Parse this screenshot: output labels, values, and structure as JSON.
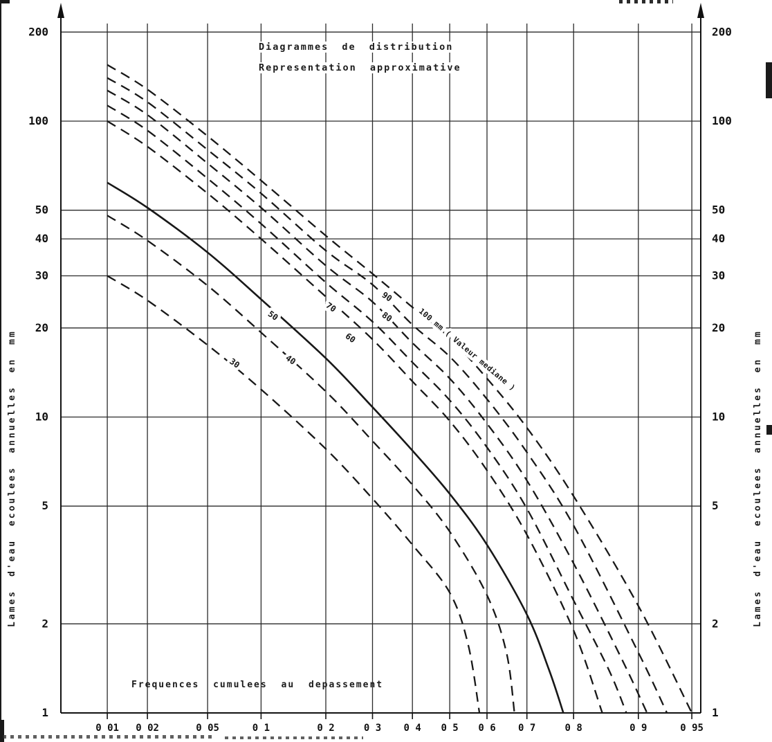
{
  "chart_data": {
    "type": "line",
    "title": "Diagrammes de distribution",
    "subtitle": "Representation approximative",
    "x_axis": {
      "label": "Frequences cumulees au depassement",
      "scale": "normal-probability",
      "ticks": [
        0.01,
        0.02,
        0.05,
        0.1,
        0.2,
        0.3,
        0.4,
        0.5,
        0.6,
        0.7,
        0.8,
        0.9,
        0.95
      ],
      "tick_labels": [
        "0 01",
        "0 02",
        "0 05",
        "0 1",
        "0 2",
        "0 3",
        "0 4",
        "0 5",
        "0 6",
        "0 7",
        "0 8",
        "0 9",
        "0 95"
      ]
    },
    "y_axis": {
      "label_left": "Lames d'eau ecoulees annuelles en mm",
      "label_right": "Lames d'eau ecoulees annuelles en mm",
      "scale": "log",
      "range": [
        1,
        250
      ],
      "ticks": [
        200,
        100,
        50,
        40,
        30,
        20,
        10,
        5,
        2,
        1
      ]
    },
    "grid": "on",
    "series": [
      {
        "name": "median-30",
        "label": "30",
        "style": "dashed",
        "label_at": {
          "p": 0.072,
          "v": 15.2,
          "angle": 35
        },
        "points": [
          [
            0.01,
            30
          ],
          [
            0.02,
            24.8
          ],
          [
            0.05,
            17.5
          ],
          [
            0.1,
            12.4
          ],
          [
            0.2,
            7.8
          ],
          [
            0.3,
            5.3
          ],
          [
            0.4,
            3.7
          ],
          [
            0.5,
            2.55
          ],
          [
            0.55,
            1.7
          ],
          [
            0.58,
            1.0
          ]
        ]
      },
      {
        "name": "median-40",
        "label": "40",
        "style": "dashed",
        "label_at": {
          "p": 0.14,
          "v": 15.6,
          "angle": 35
        },
        "points": [
          [
            0.01,
            48
          ],
          [
            0.02,
            39.5
          ],
          [
            0.05,
            27.8
          ],
          [
            0.1,
            19.3
          ],
          [
            0.2,
            12.2
          ],
          [
            0.3,
            8.3
          ],
          [
            0.4,
            5.9
          ],
          [
            0.5,
            4.1
          ],
          [
            0.6,
            2.5
          ],
          [
            0.65,
            1.6
          ],
          [
            0.67,
            1.0
          ]
        ]
      },
      {
        "name": "median-50",
        "label": "50",
        "style": "solid",
        "label_at": {
          "p": 0.115,
          "v": 22,
          "angle": 35
        },
        "points": [
          [
            0.01,
            62
          ],
          [
            0.02,
            51
          ],
          [
            0.05,
            36
          ],
          [
            0.1,
            25
          ],
          [
            0.2,
            15.8
          ],
          [
            0.3,
            10.8
          ],
          [
            0.4,
            7.7
          ],
          [
            0.5,
            5.5
          ],
          [
            0.6,
            3.7
          ],
          [
            0.7,
            2.15
          ],
          [
            0.75,
            1.4
          ],
          [
            0.78,
            1.0
          ]
        ]
      },
      {
        "name": "median-60",
        "label": "60",
        "style": "dashed",
        "label_at": {
          "p": 0.25,
          "v": 18.5,
          "angle": 35
        },
        "points": [
          [
            0.01,
            100
          ],
          [
            0.02,
            82
          ],
          [
            0.05,
            57
          ],
          [
            0.1,
            40
          ],
          [
            0.2,
            25.5
          ],
          [
            0.3,
            18.3
          ],
          [
            0.4,
            13.2
          ],
          [
            0.5,
            9.7
          ],
          [
            0.6,
            6.6
          ],
          [
            0.7,
            4.0
          ],
          [
            0.8,
            1.9
          ],
          [
            0.85,
            1.0
          ]
        ]
      },
      {
        "name": "median-70",
        "label": "70",
        "style": "dashed",
        "label_at": {
          "p": 0.21,
          "v": 23.5,
          "angle": 35
        },
        "points": [
          [
            0.01,
            113
          ],
          [
            0.02,
            93
          ],
          [
            0.05,
            64
          ],
          [
            0.1,
            45
          ],
          [
            0.2,
            28.5
          ],
          [
            0.3,
            21
          ],
          [
            0.4,
            15.3
          ],
          [
            0.5,
            11.4
          ],
          [
            0.6,
            7.9
          ],
          [
            0.7,
            4.9
          ],
          [
            0.8,
            2.4
          ],
          [
            0.86,
            1.4
          ],
          [
            0.885,
            1.0
          ]
        ]
      },
      {
        "name": "median-80",
        "label": "80",
        "style": "dashed",
        "label_at": {
          "p": 0.335,
          "v": 21.8,
          "angle": 35
        },
        "points": [
          [
            0.01,
            127
          ],
          [
            0.02,
            105
          ],
          [
            0.05,
            72
          ],
          [
            0.1,
            51
          ],
          [
            0.2,
            32.5
          ],
          [
            0.3,
            24.5
          ],
          [
            0.4,
            17.8
          ],
          [
            0.5,
            13.5
          ],
          [
            0.6,
            9.5
          ],
          [
            0.7,
            6.1
          ],
          [
            0.8,
            3.2
          ],
          [
            0.88,
            1.5
          ],
          [
            0.91,
            1.0
          ]
        ]
      },
      {
        "name": "median-90",
        "label": "90",
        "style": "dashed",
        "label_at": {
          "p": 0.335,
          "v": 25.5,
          "angle": 35
        },
        "points": [
          [
            0.01,
            140
          ],
          [
            0.02,
            116
          ],
          [
            0.05,
            80
          ],
          [
            0.1,
            57
          ],
          [
            0.2,
            36.5
          ],
          [
            0.3,
            28
          ],
          [
            0.4,
            20.5
          ],
          [
            0.5,
            16
          ],
          [
            0.6,
            11.5
          ],
          [
            0.7,
            7.6
          ],
          [
            0.8,
            4.3
          ],
          [
            0.9,
            1.6
          ],
          [
            0.93,
            1.0
          ]
        ]
      },
      {
        "name": "median-100",
        "label": "100 mm ( Valeur mediane )",
        "style": "dashed",
        "label_at": {
          "p": 0.42,
          "v": 23,
          "angle": 40
        },
        "points": [
          [
            0.01,
            155
          ],
          [
            0.02,
            128
          ],
          [
            0.05,
            89
          ],
          [
            0.1,
            63
          ],
          [
            0.2,
            41
          ],
          [
            0.3,
            30.5
          ],
          [
            0.4,
            23.5
          ],
          [
            0.5,
            18.5
          ],
          [
            0.6,
            13.5
          ],
          [
            0.7,
            9.2
          ],
          [
            0.8,
            5.4
          ],
          [
            0.9,
            2.3
          ],
          [
            0.95,
            1.0
          ]
        ]
      }
    ],
    "colors": {
      "ink": "#1b1b1b",
      "paper": "#ffffff"
    }
  }
}
